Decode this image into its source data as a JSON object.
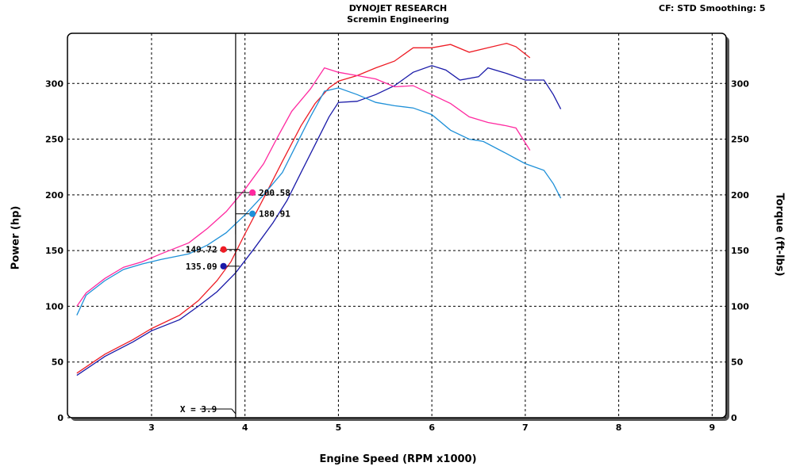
{
  "header": {
    "title": "DYNOJET RESEARCH",
    "subtitle": "Scremin Engineering",
    "settings": "CF: STD  Smoothing: 5"
  },
  "chart_data": {
    "type": "line",
    "xlabel": "Engine Speed (RPM x1000)",
    "ylabel_left": "Power (hp)",
    "ylabel_right": "Torque (ft-lbs)",
    "xlim": [
      2.1,
      9.15
    ],
    "ylim": [
      0,
      345
    ],
    "x_ticks": [
      3,
      4,
      5,
      6,
      7,
      8,
      9
    ],
    "y_ticks": [
      0,
      50,
      100,
      150,
      200,
      250,
      300
    ],
    "grid": true,
    "cursor": {
      "x": 3.9,
      "label": "X = 3.9"
    },
    "readouts": [
      {
        "series": "power-red",
        "x": 3.77,
        "y": 151,
        "label": "149.72",
        "side": "left",
        "color": "#ee1c25"
      },
      {
        "series": "power-blue",
        "x": 3.77,
        "y": 136,
        "label": "135.09",
        "side": "left",
        "color": "#1a1aa8"
      },
      {
        "series": "torque-pink",
        "x": 4.08,
        "y": 202,
        "label": "200.58",
        "side": "right",
        "color": "#ff2aa0"
      },
      {
        "series": "torque-cyan",
        "x": 4.08,
        "y": 183,
        "label": "180.91",
        "side": "right",
        "color": "#1e90d8"
      }
    ],
    "series": [
      {
        "color": "#ee1c25",
        "points": [
          [
            2.2,
            40
          ],
          [
            2.5,
            57
          ],
          [
            2.8,
            70
          ],
          [
            3.0,
            80
          ],
          [
            3.3,
            92
          ],
          [
            3.5,
            105
          ],
          [
            3.7,
            123
          ],
          [
            3.85,
            140
          ],
          [
            4.0,
            165
          ],
          [
            4.2,
            197
          ],
          [
            4.4,
            230
          ],
          [
            4.6,
            262
          ],
          [
            4.75,
            282
          ],
          [
            4.9,
            296
          ],
          [
            5.0,
            302
          ],
          [
            5.2,
            307
          ],
          [
            5.4,
            314
          ],
          [
            5.6,
            320
          ],
          [
            5.8,
            332
          ],
          [
            6.0,
            332
          ],
          [
            6.2,
            335
          ],
          [
            6.4,
            328
          ],
          [
            6.6,
            332
          ],
          [
            6.8,
            336
          ],
          [
            6.9,
            333
          ],
          [
            7.05,
            323
          ]
        ]
      },
      {
        "color": "#1a1aa8",
        "points": [
          [
            2.2,
            38
          ],
          [
            2.5,
            55
          ],
          [
            2.8,
            68
          ],
          [
            3.0,
            78
          ],
          [
            3.3,
            88
          ],
          [
            3.5,
            100
          ],
          [
            3.7,
            113
          ],
          [
            3.9,
            130
          ],
          [
            4.1,
            152
          ],
          [
            4.3,
            175
          ],
          [
            4.45,
            195
          ],
          [
            4.6,
            220
          ],
          [
            4.75,
            245
          ],
          [
            4.9,
            270
          ],
          [
            5.0,
            283
          ],
          [
            5.2,
            284
          ],
          [
            5.4,
            290
          ],
          [
            5.6,
            298
          ],
          [
            5.8,
            310
          ],
          [
            6.0,
            316
          ],
          [
            6.15,
            312
          ],
          [
            6.3,
            303
          ],
          [
            6.5,
            306
          ],
          [
            6.6,
            314
          ],
          [
            6.8,
            309
          ],
          [
            7.0,
            303
          ],
          [
            7.2,
            303
          ],
          [
            7.3,
            290
          ],
          [
            7.38,
            277
          ]
        ]
      },
      {
        "color": "#ff2aa0",
        "points": [
          [
            2.2,
            100
          ],
          [
            2.3,
            112
          ],
          [
            2.5,
            125
          ],
          [
            2.7,
            135
          ],
          [
            2.9,
            140
          ],
          [
            3.1,
            147
          ],
          [
            3.4,
            157
          ],
          [
            3.6,
            170
          ],
          [
            3.8,
            185
          ],
          [
            4.0,
            205
          ],
          [
            4.2,
            228
          ],
          [
            4.35,
            252
          ],
          [
            4.5,
            275
          ],
          [
            4.7,
            295
          ],
          [
            4.85,
            314
          ],
          [
            5.0,
            310
          ],
          [
            5.2,
            307
          ],
          [
            5.4,
            304
          ],
          [
            5.6,
            297
          ],
          [
            5.8,
            298
          ],
          [
            6.0,
            290
          ],
          [
            6.2,
            282
          ],
          [
            6.4,
            270
          ],
          [
            6.6,
            265
          ],
          [
            6.8,
            262
          ],
          [
            6.9,
            260
          ],
          [
            7.05,
            240
          ]
        ]
      },
      {
        "color": "#1e90d8",
        "points": [
          [
            2.2,
            92
          ],
          [
            2.3,
            110
          ],
          [
            2.5,
            123
          ],
          [
            2.7,
            133
          ],
          [
            2.9,
            138
          ],
          [
            3.1,
            142
          ],
          [
            3.4,
            147
          ],
          [
            3.6,
            155
          ],
          [
            3.8,
            166
          ],
          [
            4.0,
            182
          ],
          [
            4.2,
            200
          ],
          [
            4.4,
            220
          ],
          [
            4.55,
            245
          ],
          [
            4.7,
            270
          ],
          [
            4.85,
            293
          ],
          [
            5.0,
            296
          ],
          [
            5.2,
            290
          ],
          [
            5.4,
            283
          ],
          [
            5.6,
            280
          ],
          [
            5.8,
            278
          ],
          [
            6.0,
            272
          ],
          [
            6.2,
            258
          ],
          [
            6.4,
            250
          ],
          [
            6.55,
            248
          ],
          [
            6.8,
            237
          ],
          [
            7.0,
            228
          ],
          [
            7.2,
            222
          ],
          [
            7.3,
            210
          ],
          [
            7.38,
            197
          ]
        ]
      }
    ]
  }
}
